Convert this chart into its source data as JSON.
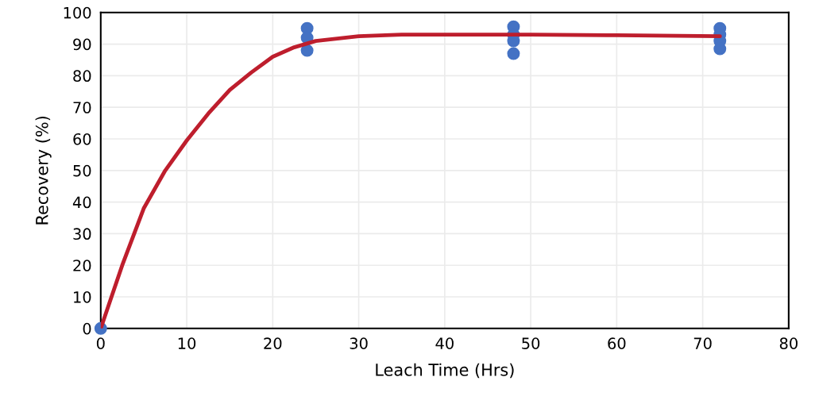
{
  "chart_data": {
    "type": "scatter",
    "xlabel": "Leach Time (Hrs)",
    "ylabel": "Recovery (%)",
    "xlim": [
      0,
      80
    ],
    "xticks": [
      0,
      10,
      20,
      30,
      40,
      50,
      60,
      70,
      80
    ],
    "ylim": [
      0,
      100
    ],
    "yticks": [
      0,
      10,
      20,
      30,
      40,
      50,
      60,
      70,
      80,
      90,
      100
    ],
    "grid": true,
    "series": [
      {
        "color": "#4472c4",
        "marker": "circle",
        "x": [
          0,
          24,
          24,
          24,
          48,
          48,
          48,
          48,
          72,
          72,
          72,
          72
        ],
        "values": [
          0,
          95,
          92,
          88,
          95.5,
          93,
          91,
          87,
          95,
          93,
          91,
          88.5
        ]
      },
      {
        "type": "line",
        "color": "#be1e2d",
        "marker": "none",
        "x": [
          0,
          1,
          2.5,
          5,
          7.5,
          10,
          12.5,
          15,
          17.5,
          20,
          22.5,
          25,
          30,
          35,
          40,
          50,
          60,
          72
        ],
        "values": [
          0,
          8,
          20,
          38,
          50,
          59.5,
          68,
          75.5,
          81,
          86,
          89,
          91,
          92.5,
          93,
          93,
          93,
          92.8,
          92.5
        ]
      }
    ]
  }
}
